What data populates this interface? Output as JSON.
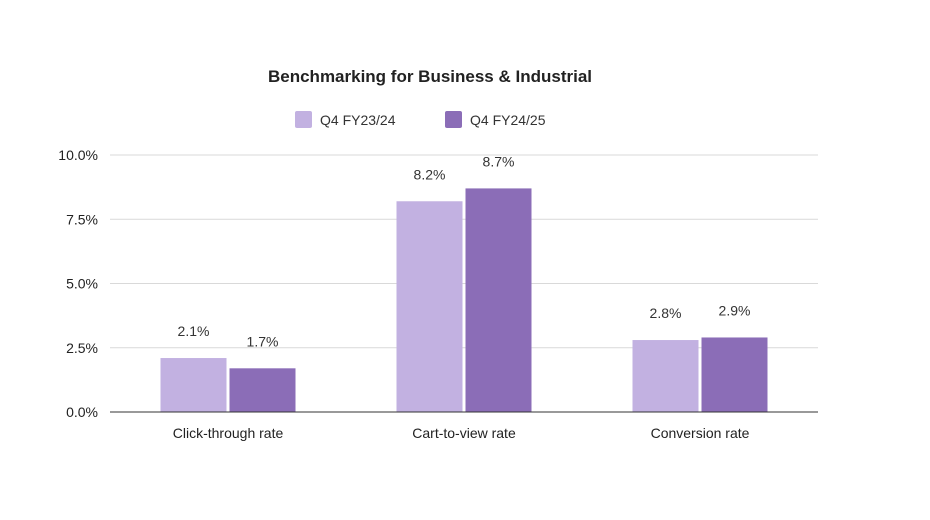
{
  "chart_data": {
    "type": "bar",
    "title": "Benchmarking for Business & Industrial",
    "categories": [
      "Click-through rate",
      "Cart-to-view rate",
      "Conversion rate"
    ],
    "series": [
      {
        "name": "Q4 FY23/24",
        "color": "#c2b1e1",
        "values": [
          2.1,
          8.2,
          2.8
        ],
        "labels": [
          "2.1%",
          "8.2%",
          "2.8%"
        ]
      },
      {
        "name": "Q4 FY24/25",
        "color": "#8b6db7",
        "values": [
          1.7,
          8.7,
          2.9
        ],
        "labels": [
          "1.7%",
          "8.7%",
          "2.9%"
        ]
      }
    ],
    "ylim": [
      0,
      10
    ],
    "yticks": [
      0,
      2.5,
      5,
      7.5,
      10
    ],
    "ytick_labels": [
      "0.0%",
      "2.5%",
      "5.0%",
      "7.5%",
      "10.0%"
    ],
    "xlabel": "",
    "ylabel": "",
    "grid": true,
    "legend_position": "top"
  }
}
